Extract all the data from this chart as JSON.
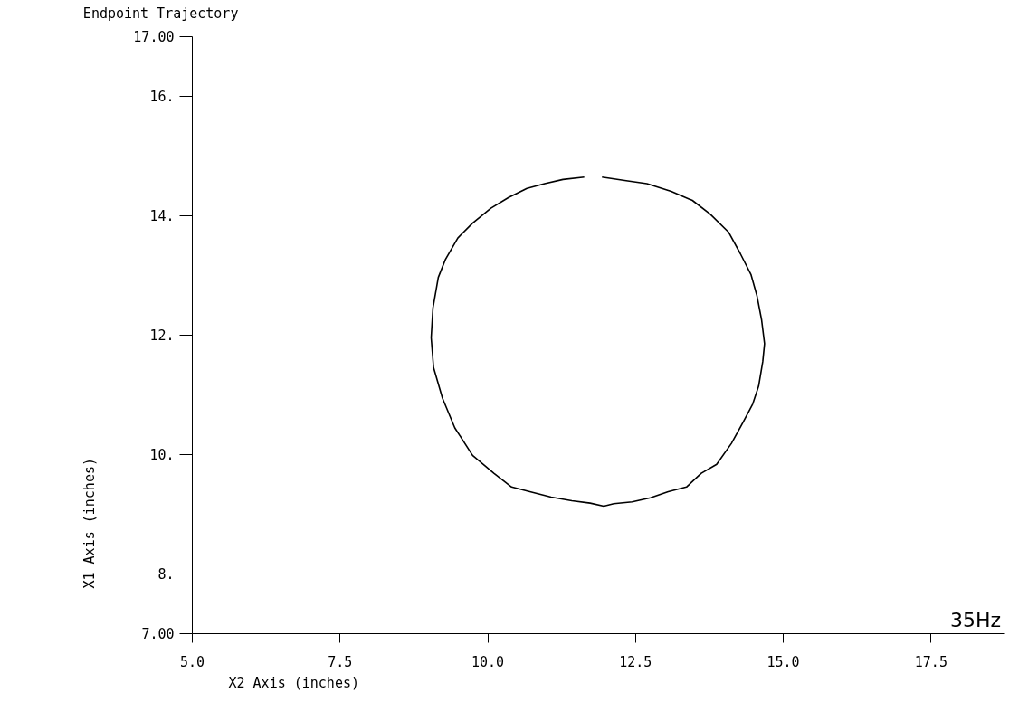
{
  "chart_data": {
    "type": "line",
    "title": "Endpoint Trajectory",
    "xlabel": "X2 Axis    (inches)",
    "ylabel": "X1 Axis    (inches)",
    "annotations": [
      "35Hz"
    ],
    "xlim": [
      5,
      18.75
    ],
    "xticks": [
      {
        "value": 5,
        "label": "5.0"
      },
      {
        "value": 7.5,
        "label": "7.5"
      },
      {
        "value": 10,
        "label": "10.0"
      },
      {
        "value": 12.5,
        "label": "12.5"
      },
      {
        "value": 15,
        "label": "15.0"
      },
      {
        "value": 17.5,
        "label": "17.5"
      }
    ],
    "ylim": [
      7,
      17
    ],
    "yticks": [
      {
        "value": 7,
        "label": "7.00"
      },
      {
        "value": 8,
        "label": "8."
      },
      {
        "value": 10,
        "label": "10."
      },
      {
        "value": 12,
        "label": "12."
      },
      {
        "value": 14,
        "label": "14."
      },
      {
        "value": 16,
        "label": "16."
      },
      {
        "value": 17,
        "label": "17.00"
      }
    ],
    "grid": false,
    "series": [
      {
        "color": "#000000",
        "x": [
          11.94,
          12.35,
          12.7,
          13.11,
          13.47,
          13.77,
          14.08,
          14.28,
          14.46,
          14.56,
          14.64,
          14.69,
          14.66,
          14.59,
          14.49,
          14.33,
          14.13,
          13.88,
          13.62,
          13.37,
          13.06,
          12.76,
          12.45,
          12.14,
          11.97,
          11.74,
          11.43,
          11.08,
          10.72,
          10.41,
          10.11,
          9.75,
          9.45,
          9.24,
          9.09,
          9.05,
          9.08,
          9.17,
          9.29,
          9.5,
          9.75,
          10.06,
          10.36,
          10.67,
          10.97,
          11.28,
          11.64
        ],
        "values": [
          14.64,
          14.58,
          14.53,
          14.4,
          14.25,
          14.02,
          13.72,
          13.36,
          13.01,
          12.66,
          12.25,
          11.85,
          11.55,
          11.14,
          10.84,
          10.54,
          10.18,
          9.83,
          9.68,
          9.45,
          9.37,
          9.27,
          9.2,
          9.17,
          9.13,
          9.18,
          9.22,
          9.28,
          9.37,
          9.45,
          9.68,
          9.98,
          10.44,
          10.94,
          11.45,
          11.95,
          12.45,
          12.96,
          13.26,
          13.62,
          13.87,
          14.12,
          14.3,
          14.45,
          14.53,
          14.6,
          14.64
        ]
      }
    ]
  }
}
